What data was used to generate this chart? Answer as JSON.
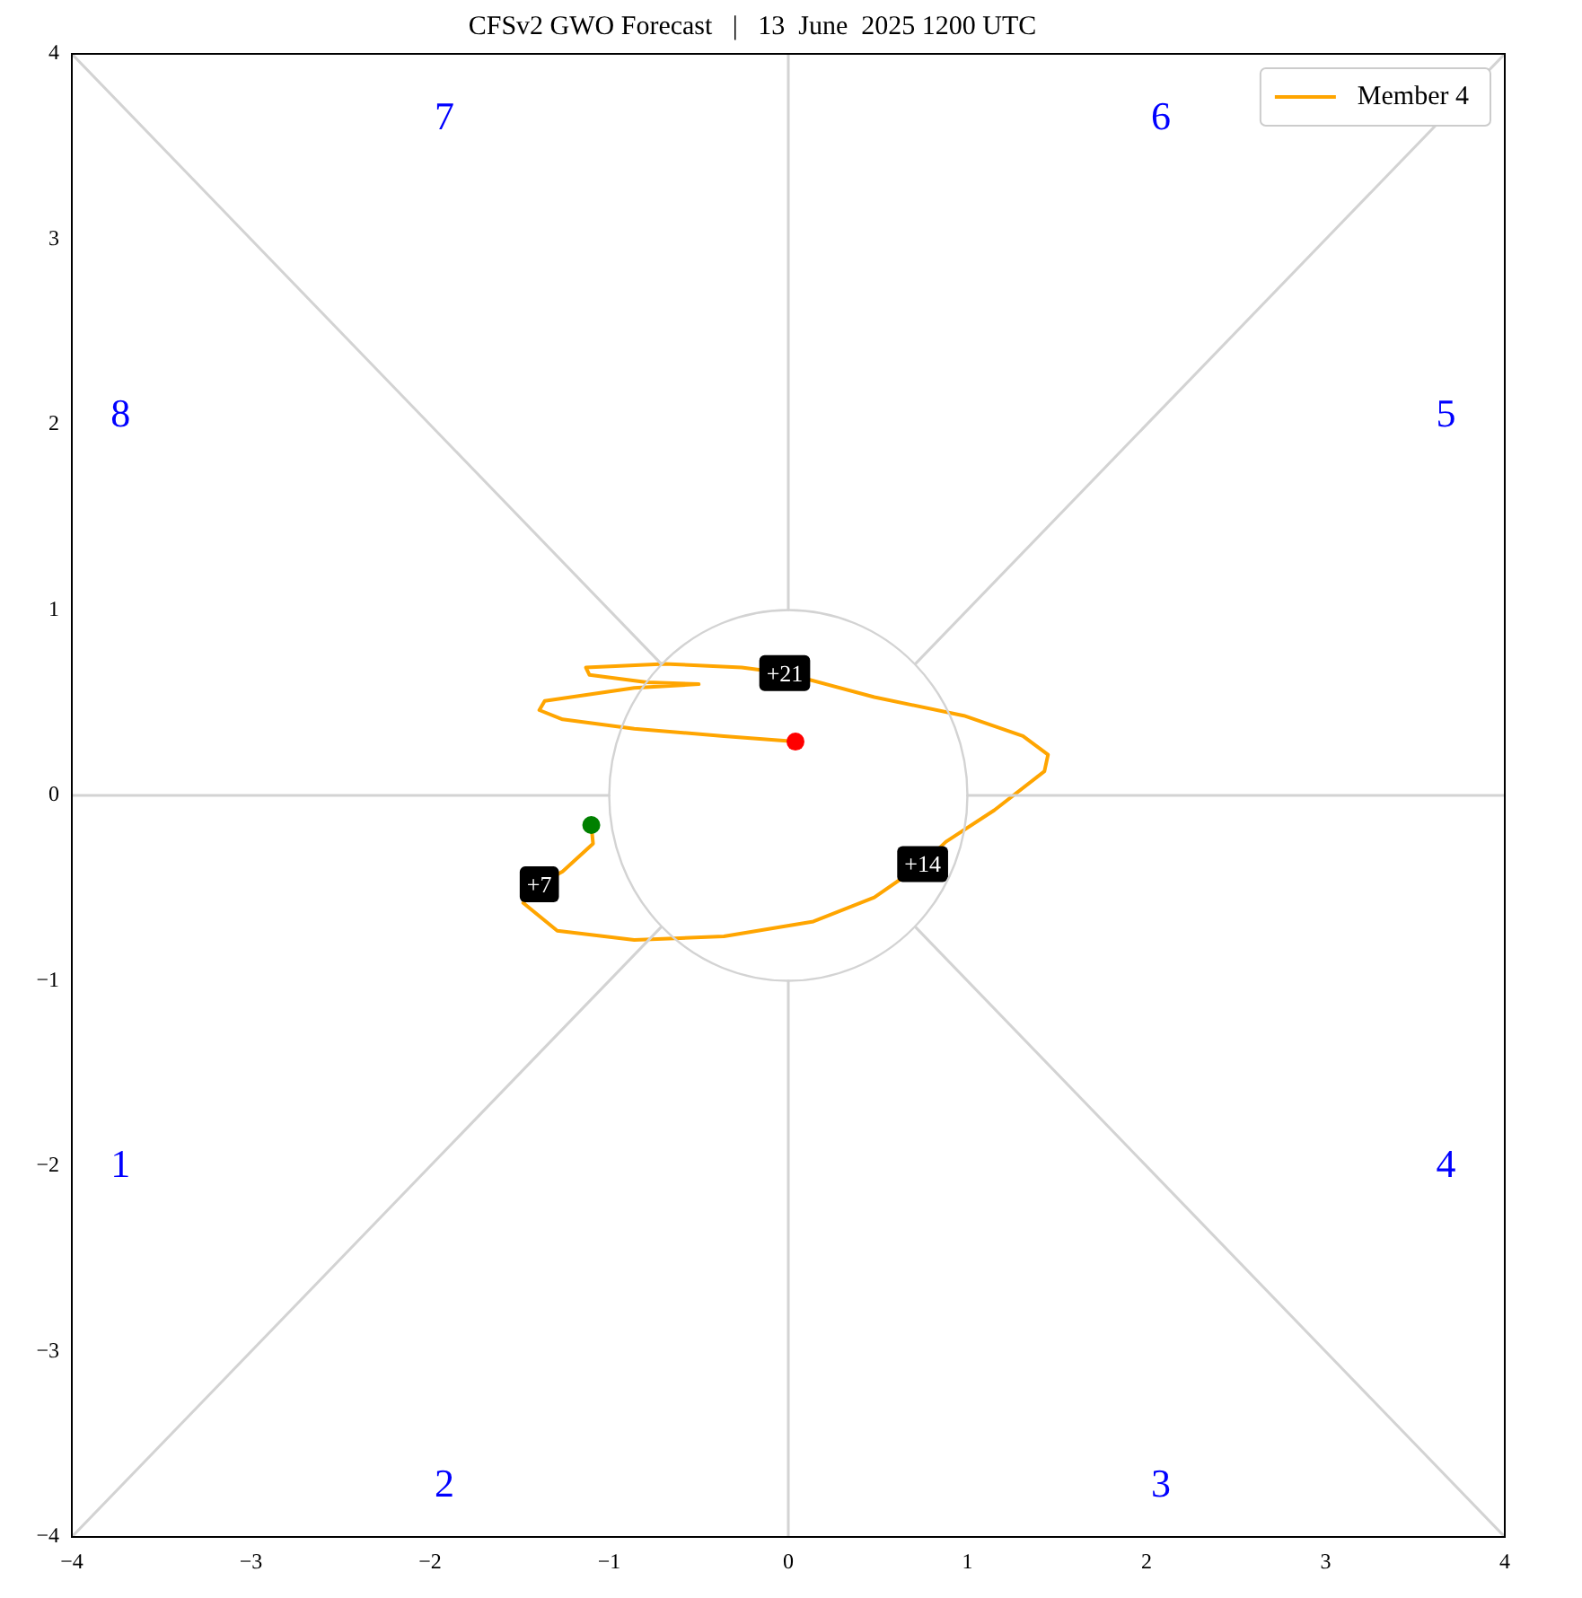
{
  "chart_data": {
    "type": "line",
    "title": "CFSv2 GWO Forecast   |   13  June  2025 1200 UTC",
    "xlim": [
      -4,
      4
    ],
    "ylim": [
      -4,
      4
    ],
    "xticks": [
      -4,
      -3,
      -2,
      -1,
      0,
      1,
      2,
      3,
      4
    ],
    "yticks": [
      -4,
      -3,
      -2,
      -1,
      0,
      1,
      2,
      3,
      4
    ],
    "grid": false,
    "legend": "top right",
    "line_style": "solid",
    "series": [
      {
        "color": "#d3d3d3",
        "x": [
          -4,
          -0.71
        ],
        "values": [
          4,
          0.71
        ]
      },
      {
        "color": "#d3d3d3",
        "x": [
          0.71,
          4
        ],
        "values": [
          0.71,
          4
        ]
      },
      {
        "color": "#d3d3d3",
        "x": [
          -4,
          -0.71
        ],
        "values": [
          -4,
          -0.71
        ]
      },
      {
        "color": "#d3d3d3",
        "x": [
          0.71,
          4
        ],
        "values": [
          -0.71,
          -4
        ]
      },
      {
        "color": "#d3d3d3",
        "x": [
          -4,
          -1
        ],
        "values": [
          0,
          0
        ]
      },
      {
        "color": "#d3d3d3",
        "x": [
          1,
          4
        ],
        "values": [
          0,
          0
        ]
      },
      {
        "color": "#d3d3d3",
        "x": [
          0,
          0
        ],
        "values": [
          1,
          4
        ]
      },
      {
        "color": "#d3d3d3",
        "x": [
          0,
          0
        ],
        "values": [
          -1,
          -4
        ]
      },
      {
        "name": "Member 4",
        "color": "#ffa500",
        "x": [
          -1.1,
          -1.09,
          -1.26,
          -1.39,
          -1.48,
          -1.29,
          -0.86,
          -0.36,
          0.14,
          0.48,
          0.75,
          0.88,
          1.15,
          1.43,
          1.45,
          1.31,
          0.98,
          0.48,
          -0.02,
          -0.26,
          -0.69,
          -1.13,
          -1.11,
          -0.79,
          -0.5,
          -0.86,
          -1.36,
          -1.39,
          -1.26,
          -0.86,
          -0.36,
          0.04
        ],
        "values": [
          -0.16,
          -0.26,
          -0.41,
          -0.48,
          -0.58,
          -0.73,
          -0.78,
          -0.76,
          -0.68,
          -0.55,
          -0.37,
          -0.25,
          -0.08,
          0.13,
          0.22,
          0.32,
          0.43,
          0.53,
          0.66,
          0.69,
          0.71,
          0.69,
          0.65,
          0.61,
          0.6,
          0.58,
          0.51,
          0.46,
          0.41,
          0.36,
          0.32,
          0.29
        ]
      },
      {
        "type": "scatter",
        "color": "#008000",
        "x": [
          -1.1
        ],
        "values": [
          -0.16
        ]
      },
      {
        "type": "scatter",
        "color": "#ff0000",
        "x": [
          0.04
        ],
        "values": [
          0.29
        ]
      }
    ],
    "annotations": [
      {
        "text": "+7",
        "x": -1.39,
        "y": -0.48
      },
      {
        "text": "+14",
        "x": 0.75,
        "y": -0.37
      },
      {
        "text": "+21",
        "x": -0.02,
        "y": 0.66
      },
      "1",
      "2",
      "3",
      "4",
      "5",
      "6",
      "7",
      "8"
    ]
  }
}
